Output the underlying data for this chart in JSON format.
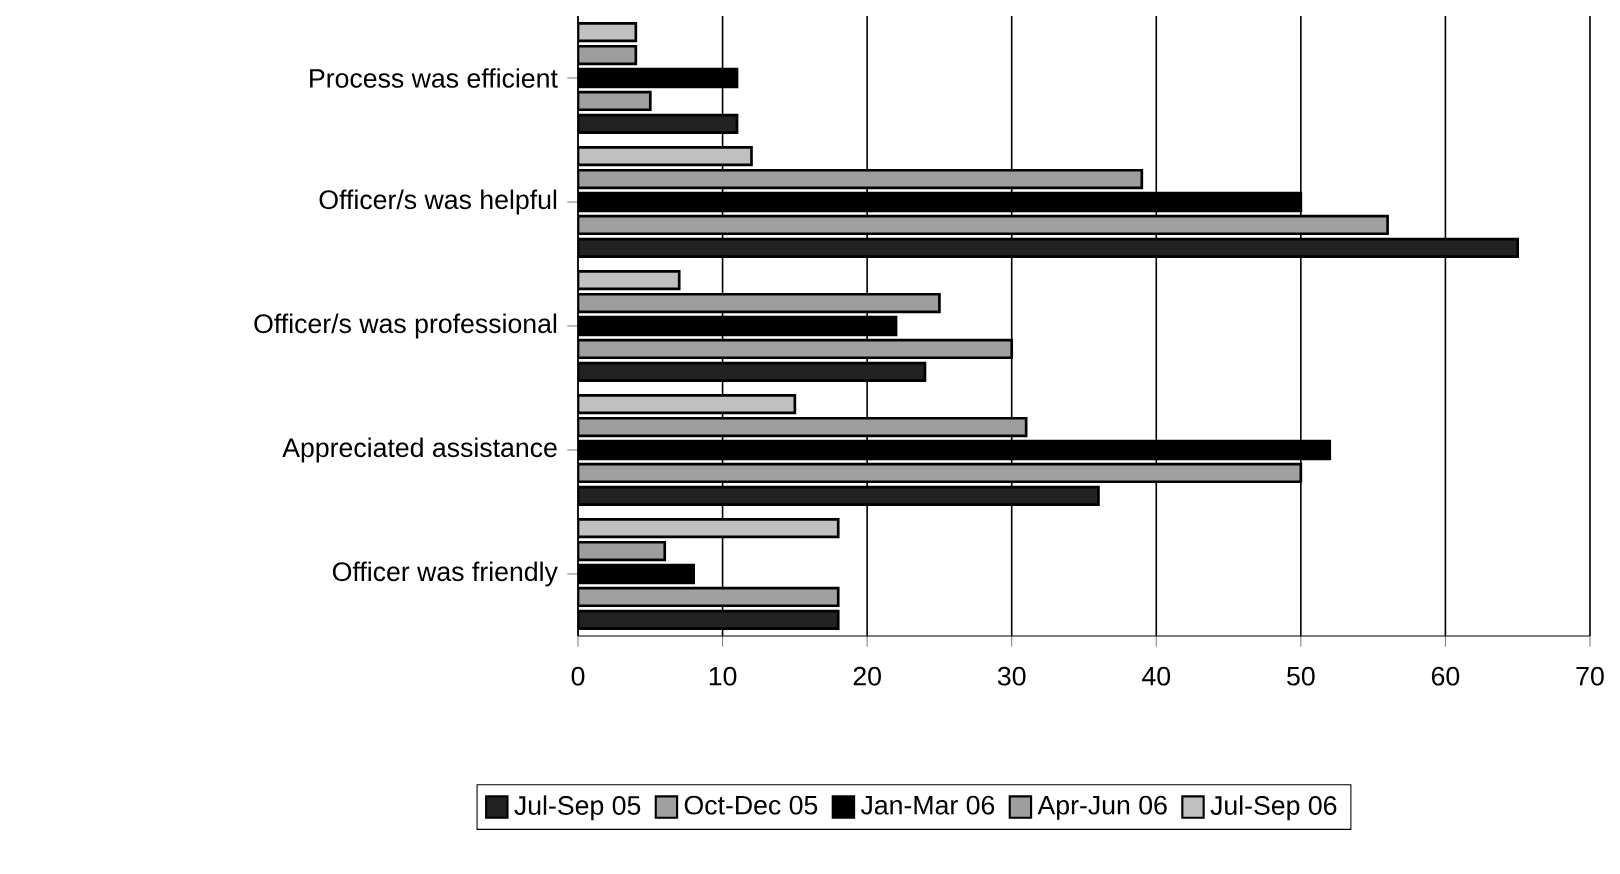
{
  "chart_data": {
    "type": "bar",
    "orientation": "horizontal",
    "categories": [
      "Process was efficient",
      "Officer/s was helpful",
      "Officer/s was professional",
      "Appreciated assistance",
      "Officer was friendly"
    ],
    "series": [
      {
        "name": "Jul-Sep 05",
        "color": "#222222",
        "values": [
          11,
          65,
          24,
          36,
          18
        ]
      },
      {
        "name": "Oct-Dec 05",
        "color": "#a0a0a0",
        "values": [
          5,
          56,
          30,
          50,
          18
        ]
      },
      {
        "name": "Jan-Mar 06",
        "color": "#000000",
        "values": [
          11,
          50,
          22,
          52,
          8
        ]
      },
      {
        "name": "Apr-Jun 06",
        "color": "#9e9e9e",
        "values": [
          4,
          39,
          25,
          31,
          6
        ]
      },
      {
        "name": "Jul-Sep 06",
        "color": "#c0c0c0",
        "values": [
          4,
          12,
          7,
          15,
          18
        ]
      }
    ],
    "xlim": [
      0,
      70
    ],
    "xticks": [
      0,
      10,
      20,
      30,
      40,
      50,
      60,
      70
    ],
    "grid": "x",
    "legend": "bottom"
  }
}
